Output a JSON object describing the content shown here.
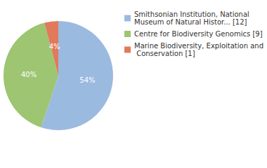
{
  "chart_data": {
    "type": "pie",
    "categories": [
      "Smithsonian Institution, National Museum of Natural Histor... [12]",
      "Centre for Biodiversity Genomics [9]",
      "Marine Biodiversity, Exploitation and Conservation [1]"
    ],
    "values": [
      54,
      40,
      4
    ],
    "value_labels": [
      "54%",
      "40%",
      "4%"
    ],
    "colors": [
      "#9bbae0",
      "#9dc572",
      "#e07a5b"
    ],
    "data_labels": true,
    "legend": "right"
  }
}
